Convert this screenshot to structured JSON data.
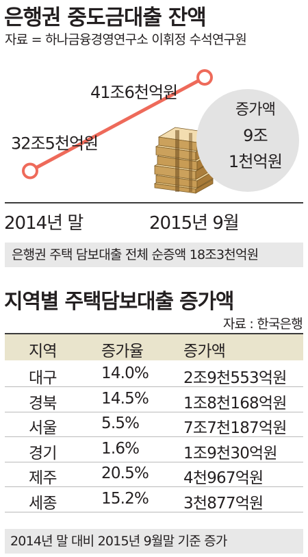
{
  "header": {
    "title": "은행권 중도금대출 잔액",
    "source": "자료 = 하나금융경영연구소 이휘정 수석연구원"
  },
  "chart_data": [
    {
      "type": "line",
      "title": "은행권 중도금대출 잔액",
      "categories": [
        "2014년 말",
        "2015년 9월"
      ],
      "series": [
        {
          "values": [
            32.5,
            41.6
          ]
        }
      ],
      "point_labels": [
        "32조5천억원",
        "41조6천억원"
      ],
      "increase": {
        "lines": [
          "증가액",
          "9조",
          "1천억원"
        ]
      },
      "colors": {
        "line": "#ee6a5a",
        "marker_fill": "#ffffff"
      }
    },
    {
      "type": "table",
      "title": "지역별 주택담보대출 증가액",
      "columns": [
        "지역",
        "증가율",
        "증가액"
      ],
      "rows": [
        [
          "대구",
          "14.0%",
          "2조9천553억원"
        ],
        [
          "경북",
          "14.5%",
          "1조8천168억원"
        ],
        [
          "서울",
          "5.5%",
          "7조7천187억원"
        ],
        [
          "경기",
          "1.6%",
          "1조9천30억원"
        ],
        [
          "제주",
          "20.5%",
          "4천967억원"
        ],
        [
          "세종",
          "15.2%",
          "3천877억원"
        ]
      ]
    }
  ],
  "note": "은행권 주택 담보대출 전체 순증액 18조3천억원",
  "section2": {
    "title": "지역별 주택담보대출 증가액",
    "source": "자료 : 한국은행"
  },
  "footer": "2014년 말 대비 2015년 9월말 기준 증가",
  "colors": {
    "header_band": "#e9e4cc",
    "note_band": "#e8e8e8",
    "bubble": "#e3e3e3"
  }
}
